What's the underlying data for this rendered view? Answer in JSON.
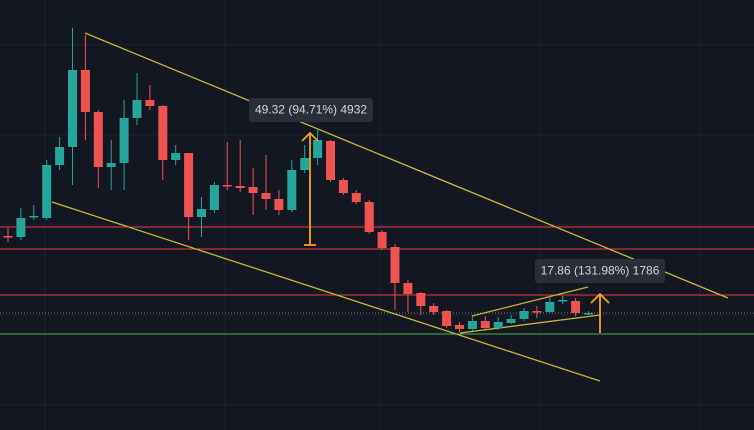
{
  "chart_data": {
    "type": "candlestick",
    "up_color": "#26a69a",
    "down_color": "#ef5350",
    "ylim": [
      -29.2,
      160
    ],
    "series": {
      "open": [
        56.16,
        55.72,
        64.52,
        64.08,
        87.4,
        95.32,
        129.2,
        110.72,
        86.52,
        88.28,
        108.08,
        116,
        113.36,
        89.6,
        92.68,
        64.52,
        67.6,
        78.6,
        78.16,
        77.72,
        75.08,
        72.44,
        67.6,
        85.2,
        90.48,
        97.96,
        80.8,
        75.08,
        71.12,
        57.92,
        51.32,
        35.48,
        31.08,
        25.36,
        23.16,
        17,
        15.24,
        18.76,
        15.68,
        17.88,
        19.64,
        23.16,
        22.72,
        27.56,
        27.56,
        22.28
      ],
      "high": [
        59.68,
        68.48,
        69.8,
        89.6,
        99.72,
        147.68,
        144.6,
        111.6,
        98.4,
        116,
        127.88,
        122.6,
        113.8,
        96.2,
        92.68,
        73.32,
        79.92,
        97.52,
        98.4,
        86.08,
        91.8,
        76.4,
        89.6,
        96.2,
        102.8,
        98.4,
        81.68,
        76.4,
        72,
        58.8,
        52.64,
        36.8,
        31.52,
        26.68,
        23.6,
        18.32,
        20.96,
        20.96,
        20.52,
        21.4,
        24.48,
        25.36,
        29.76,
        29.76,
        28.88,
        23.16
      ],
      "low": [
        53.52,
        54.4,
        63.2,
        63.2,
        85.2,
        78.6,
        98.4,
        77.28,
        76.4,
        76.4,
        105,
        111.6,
        80.8,
        87.4,
        54.4,
        55.72,
        66.28,
        76.4,
        75.52,
        65.4,
        67.6,
        65.4,
        66.72,
        83.88,
        87.4,
        79.92,
        74.2,
        70.24,
        57.04,
        50,
        23.6,
        22.72,
        21.4,
        21.4,
        15.68,
        13.92,
        14.36,
        14.8,
        14.8,
        17.44,
        18.76,
        20.08,
        22.28,
        26.24,
        20.96,
        21.4
      ],
      "close": [
        55.72,
        64.08,
        64.96,
        87.4,
        95.32,
        129.2,
        110.72,
        86.52,
        88.28,
        108.08,
        116,
        113.36,
        89.6,
        92.68,
        64.52,
        68.04,
        78.6,
        78.16,
        77.28,
        75.08,
        72.44,
        67.6,
        85.2,
        90.48,
        98.4,
        80.8,
        75.08,
        71.12,
        57.92,
        50.88,
        35.48,
        30.64,
        25.36,
        22.72,
        16.56,
        15.24,
        18.76,
        15.68,
        18.32,
        19.64,
        23.16,
        22.72,
        27.12,
        28,
        22.28,
        22.28
      ]
    },
    "levels": [
      {
        "value": 60.12,
        "color": "#f23645",
        "style": "solid"
      },
      {
        "value": 50.44,
        "color": "#f23645",
        "style": "solid"
      },
      {
        "value": 30.2,
        "color": "#f23645",
        "style": "solid"
      },
      {
        "value": 22.28,
        "color": "#787b86",
        "style": "dotted"
      },
      {
        "value": 13.04,
        "color": "#4caf50",
        "style": "solid"
      }
    ],
    "annotations": [
      "49.32 (94.71%) 4932",
      "17.86 (131.98%) 1786"
    ]
  }
}
